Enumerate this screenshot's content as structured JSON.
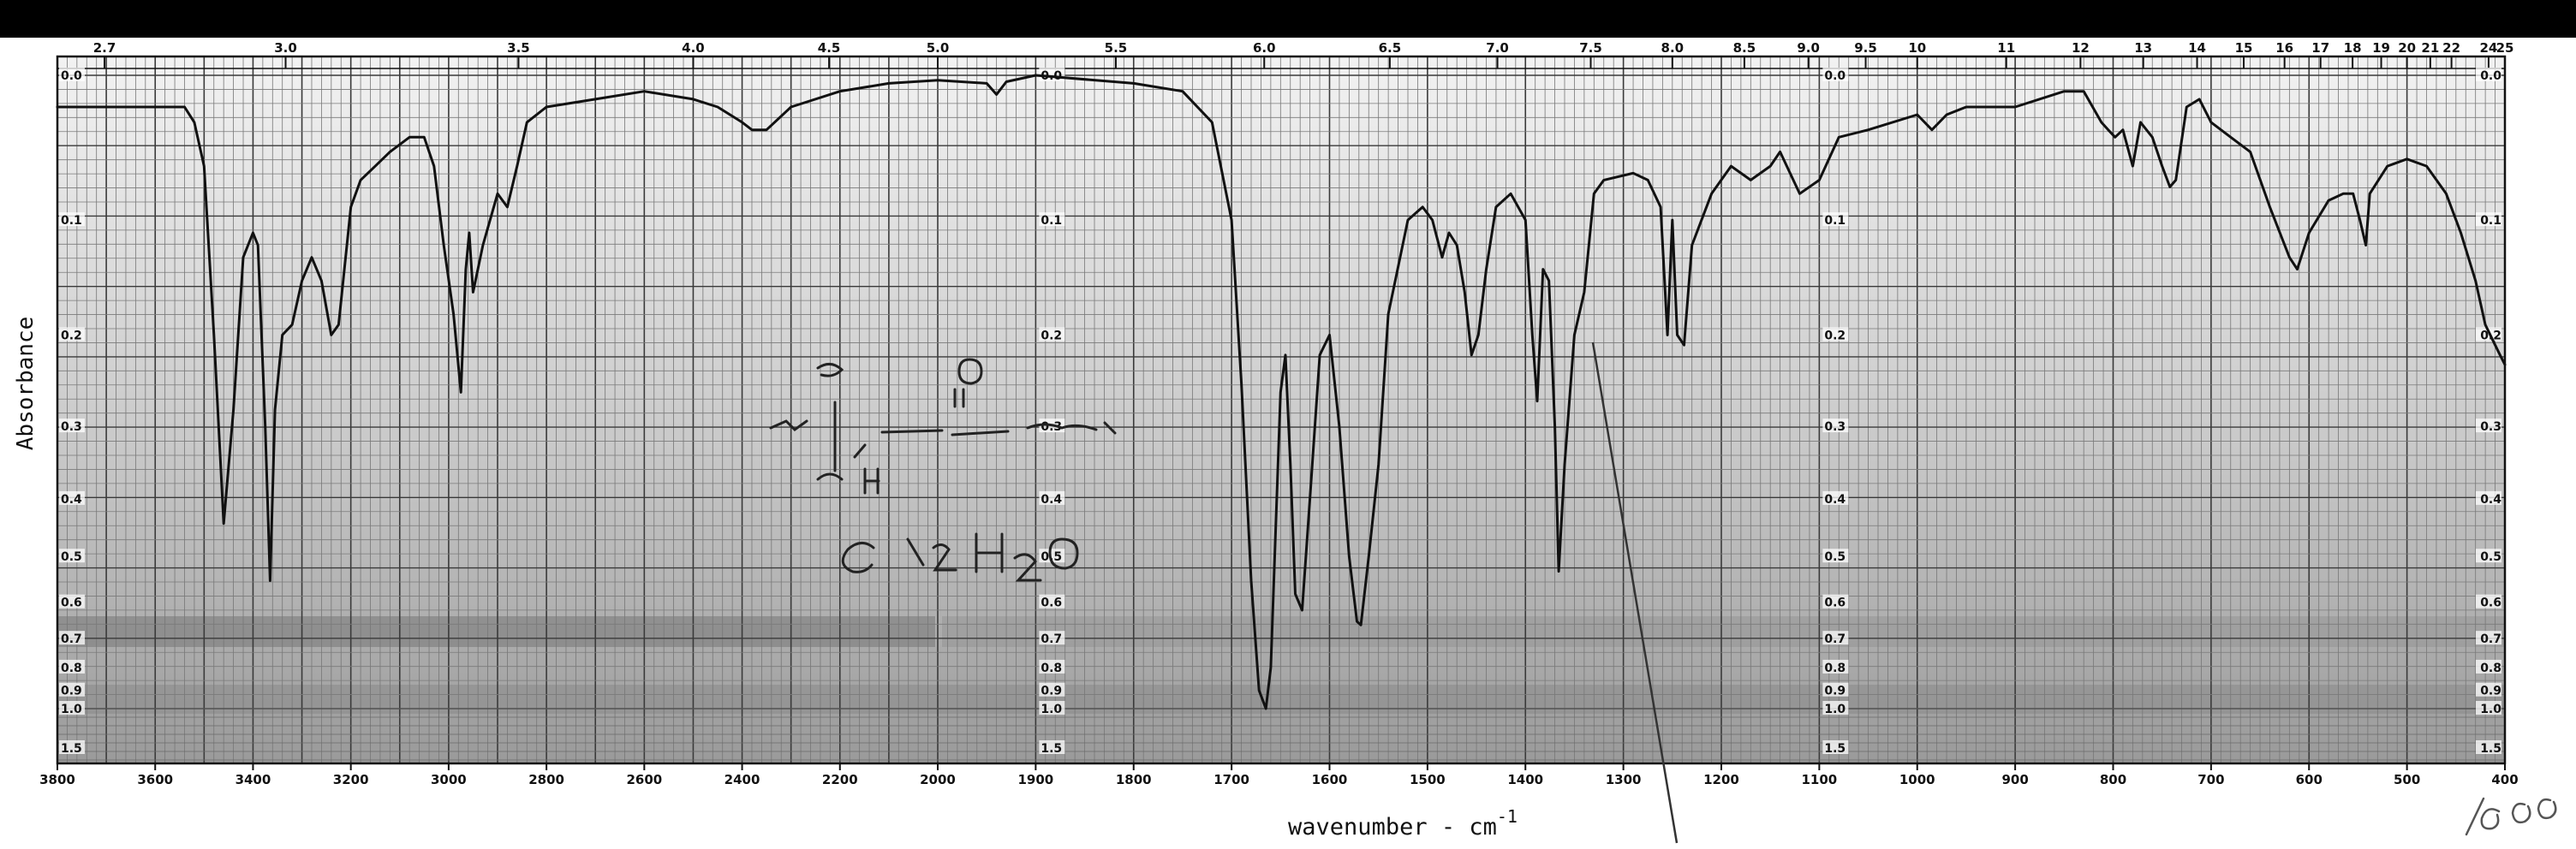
{
  "chart_data": {
    "type": "line",
    "title": "",
    "xlabel": "wavenumber - cm",
    "xlabel_superscript": "-1",
    "ylabel": "Absorbance",
    "x_range": [
      3800,
      400
    ],
    "y_range": [
      0.0,
      1.5
    ],
    "grid": true,
    "legend": "none",
    "bottom_ticks": [
      {
        "v": 3800,
        "label": "3800"
      },
      {
        "v": 3600,
        "label": "3600"
      },
      {
        "v": 3400,
        "label": "3400"
      },
      {
        "v": 3200,
        "label": "3200"
      },
      {
        "v": 3000,
        "label": "3000"
      },
      {
        "v": 2800,
        "label": "2800"
      },
      {
        "v": 2600,
        "label": "2600"
      },
      {
        "v": 2400,
        "label": "2400"
      },
      {
        "v": 2200,
        "label": "2200"
      },
      {
        "v": 2000,
        "label": "2000"
      },
      {
        "v": 1900,
        "label": "1900"
      },
      {
        "v": 1800,
        "label": "1800"
      },
      {
        "v": 1700,
        "label": "1700"
      },
      {
        "v": 1600,
        "label": "1600"
      },
      {
        "v": 1500,
        "label": "1500"
      },
      {
        "v": 1400,
        "label": "1400"
      },
      {
        "v": 1300,
        "label": "1300"
      },
      {
        "v": 1200,
        "label": "1200"
      },
      {
        "v": 1100,
        "label": "1100"
      },
      {
        "v": 1000,
        "label": "1000"
      },
      {
        "v": 900,
        "label": "900"
      },
      {
        "v": 800,
        "label": "800"
      },
      {
        "v": 700,
        "label": "700"
      },
      {
        "v": 600,
        "label": "600"
      },
      {
        "v": 500,
        "label": "500"
      },
      {
        "v": 400,
        "label": "400"
      }
    ],
    "top_ticks": [
      {
        "um": 2.7,
        "label": "2.7"
      },
      {
        "um": 3.0,
        "label": "3.0"
      },
      {
        "um": 3.5,
        "label": "3.5"
      },
      {
        "um": 4.0,
        "label": "4.0"
      },
      {
        "um": 4.5,
        "label": "4.5"
      },
      {
        "um": 5.0,
        "label": "5.0"
      },
      {
        "um": 5.5,
        "label": "5.5"
      },
      {
        "um": 6.0,
        "label": "6.0"
      },
      {
        "um": 6.5,
        "label": "6.5"
      },
      {
        "um": 7.0,
        "label": "7.0"
      },
      {
        "um": 7.5,
        "label": "7.5"
      },
      {
        "um": 8.0,
        "label": "8.0"
      },
      {
        "um": 8.5,
        "label": "8.5"
      },
      {
        "um": 9.0,
        "label": "9.0"
      },
      {
        "um": 9.5,
        "label": "9.5"
      },
      {
        "um": 10,
        "label": "10"
      },
      {
        "um": 11,
        "label": "11"
      },
      {
        "um": 12,
        "label": "12"
      },
      {
        "um": 13,
        "label": "13"
      },
      {
        "um": 14,
        "label": "14"
      },
      {
        "um": 15,
        "label": "15"
      },
      {
        "um": 16,
        "label": "16"
      },
      {
        "um": 17,
        "label": "17"
      },
      {
        "um": 18,
        "label": "18"
      },
      {
        "um": 19,
        "label": "19"
      },
      {
        "um": 20,
        "label": "20"
      },
      {
        "um": 21,
        "label": "21"
      },
      {
        "um": 22,
        "label": "22"
      },
      {
        "um": 24,
        "label": "24"
      },
      {
        "um": 25,
        "label": "25"
      }
    ],
    "y_ticks": [
      {
        "v": 0.0,
        "label": "0.0"
      },
      {
        "v": 0.1,
        "label": "0.1"
      },
      {
        "v": 0.2,
        "label": "0.2"
      },
      {
        "v": 0.3,
        "label": "0.3"
      },
      {
        "v": 0.4,
        "label": "0.4"
      },
      {
        "v": 0.5,
        "label": "0.5"
      },
      {
        "v": 0.6,
        "label": "0.6"
      },
      {
        "v": 0.7,
        "label": "0.7"
      },
      {
        "v": 0.8,
        "label": "0.8"
      },
      {
        "v": 0.9,
        "label": "0.9"
      },
      {
        "v": 1.0,
        "label": "1.0"
      },
      {
        "v": 1.5,
        "label": "1.5"
      }
    ],
    "y_label_columns_wavenumber": [
      3800,
      1900,
      1100,
      400
    ],
    "series": [
      {
        "color": "#111111",
        "points": [
          [
            3800,
            0.02
          ],
          [
            3600,
            0.02
          ],
          [
            3540,
            0.02
          ],
          [
            3520,
            0.03
          ],
          [
            3500,
            0.06
          ],
          [
            3480,
            0.2
          ],
          [
            3460,
            0.44
          ],
          [
            3440,
            0.28
          ],
          [
            3420,
            0.13
          ],
          [
            3400,
            0.11
          ],
          [
            3390,
            0.12
          ],
          [
            3375,
            0.3
          ],
          [
            3365,
            0.55
          ],
          [
            3355,
            0.28
          ],
          [
            3340,
            0.2
          ],
          [
            3320,
            0.19
          ],
          [
            3300,
            0.15
          ],
          [
            3280,
            0.13
          ],
          [
            3260,
            0.15
          ],
          [
            3240,
            0.2
          ],
          [
            3225,
            0.19
          ],
          [
            3200,
            0.09
          ],
          [
            3180,
            0.07
          ],
          [
            3150,
            0.06
          ],
          [
            3120,
            0.05
          ],
          [
            3080,
            0.04
          ],
          [
            3050,
            0.04
          ],
          [
            3030,
            0.06
          ],
          [
            3010,
            0.12
          ],
          [
            2990,
            0.18
          ],
          [
            2975,
            0.26
          ],
          [
            2965,
            0.14
          ],
          [
            2958,
            0.11
          ],
          [
            2950,
            0.16
          ],
          [
            2930,
            0.12
          ],
          [
            2900,
            0.08
          ],
          [
            2880,
            0.09
          ],
          [
            2860,
            0.06
          ],
          [
            2840,
            0.03
          ],
          [
            2800,
            0.02
          ],
          [
            2700,
            0.015
          ],
          [
            2600,
            0.01
          ],
          [
            2500,
            0.015
          ],
          [
            2450,
            0.02
          ],
          [
            2400,
            0.03
          ],
          [
            2380,
            0.035
          ],
          [
            2350,
            0.035
          ],
          [
            2300,
            0.02
          ],
          [
            2200,
            0.01
          ],
          [
            2100,
            0.005
          ],
          [
            2000,
            0.003
          ],
          [
            1950,
            0.005
          ],
          [
            1940,
            0.012
          ],
          [
            1930,
            0.004
          ],
          [
            1900,
            0.0
          ],
          [
            1800,
            0.005
          ],
          [
            1750,
            0.01
          ],
          [
            1720,
            0.03
          ],
          [
            1700,
            0.1
          ],
          [
            1690,
            0.25
          ],
          [
            1680,
            0.55
          ],
          [
            1672,
            0.9
          ],
          [
            1665,
            1.0
          ],
          [
            1660,
            0.8
          ],
          [
            1655,
            0.45
          ],
          [
            1650,
            0.26
          ],
          [
            1645,
            0.22
          ],
          [
            1640,
            0.35
          ],
          [
            1635,
            0.58
          ],
          [
            1628,
            0.62
          ],
          [
            1620,
            0.4
          ],
          [
            1610,
            0.22
          ],
          [
            1600,
            0.2
          ],
          [
            1590,
            0.3
          ],
          [
            1580,
            0.5
          ],
          [
            1572,
            0.65
          ],
          [
            1568,
            0.66
          ],
          [
            1560,
            0.5
          ],
          [
            1550,
            0.35
          ],
          [
            1540,
            0.18
          ],
          [
            1520,
            0.1
          ],
          [
            1505,
            0.09
          ],
          [
            1495,
            0.1
          ],
          [
            1485,
            0.13
          ],
          [
            1478,
            0.11
          ],
          [
            1470,
            0.12
          ],
          [
            1462,
            0.16
          ],
          [
            1455,
            0.22
          ],
          [
            1448,
            0.2
          ],
          [
            1440,
            0.14
          ],
          [
            1430,
            0.09
          ],
          [
            1415,
            0.08
          ],
          [
            1400,
            0.1
          ],
          [
            1393,
            0.2
          ],
          [
            1388,
            0.27
          ],
          [
            1382,
            0.14
          ],
          [
            1376,
            0.15
          ],
          [
            1370,
            0.3
          ],
          [
            1366,
            0.53
          ],
          [
            1360,
            0.35
          ],
          [
            1350,
            0.2
          ],
          [
            1340,
            0.16
          ],
          [
            1330,
            0.08
          ],
          [
            1320,
            0.07
          ],
          [
            1290,
            0.065
          ],
          [
            1275,
            0.07
          ],
          [
            1262,
            0.09
          ],
          [
            1255,
            0.2
          ],
          [
            1250,
            0.1
          ],
          [
            1245,
            0.2
          ],
          [
            1238,
            0.21
          ],
          [
            1230,
            0.12
          ],
          [
            1210,
            0.08
          ],
          [
            1190,
            0.06
          ],
          [
            1170,
            0.07
          ],
          [
            1150,
            0.06
          ],
          [
            1140,
            0.05
          ],
          [
            1120,
            0.08
          ],
          [
            1100,
            0.07
          ],
          [
            1080,
            0.04
          ],
          [
            1050,
            0.035
          ],
          [
            1000,
            0.025
          ],
          [
            985,
            0.035
          ],
          [
            970,
            0.025
          ],
          [
            950,
            0.02
          ],
          [
            900,
            0.02
          ],
          [
            850,
            0.01
          ],
          [
            830,
            0.01
          ],
          [
            812,
            0.03
          ],
          [
            805,
            0.035
          ],
          [
            798,
            0.04
          ],
          [
            790,
            0.035
          ],
          [
            780,
            0.06
          ],
          [
            772,
            0.03
          ],
          [
            760,
            0.04
          ],
          [
            750,
            0.06
          ],
          [
            742,
            0.075
          ],
          [
            736,
            0.07
          ],
          [
            725,
            0.02
          ],
          [
            712,
            0.015
          ],
          [
            700,
            0.03
          ],
          [
            680,
            0.04
          ],
          [
            660,
            0.05
          ],
          [
            640,
            0.09
          ],
          [
            620,
            0.13
          ],
          [
            612,
            0.14
          ],
          [
            600,
            0.11
          ],
          [
            580,
            0.085
          ],
          [
            565,
            0.08
          ],
          [
            555,
            0.08
          ],
          [
            548,
            0.1
          ],
          [
            542,
            0.12
          ],
          [
            538,
            0.08
          ],
          [
            520,
            0.06
          ],
          [
            500,
            0.055
          ],
          [
            480,
            0.06
          ],
          [
            460,
            0.08
          ],
          [
            445,
            0.11
          ],
          [
            430,
            0.15
          ],
          [
            420,
            0.19
          ],
          [
            410,
            0.21
          ],
          [
            405,
            0.22
          ],
          [
            400,
            0.23
          ]
        ]
      }
    ]
  }
}
